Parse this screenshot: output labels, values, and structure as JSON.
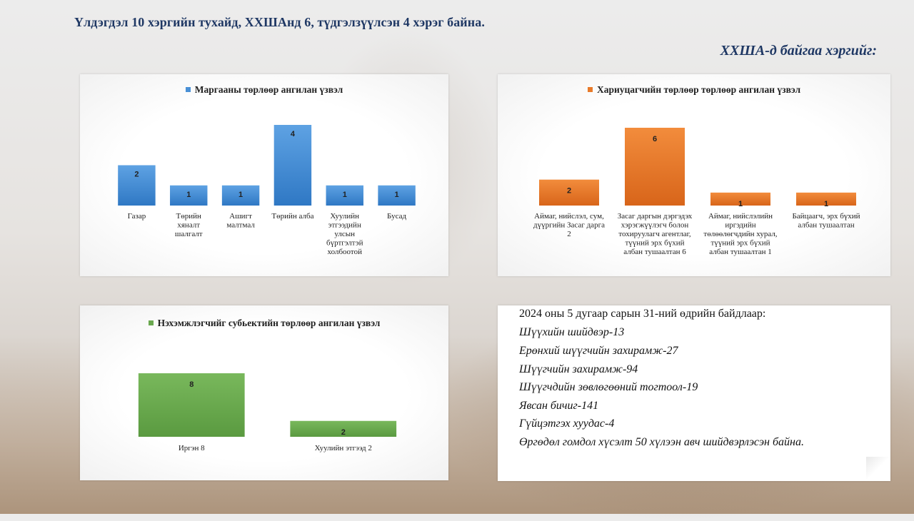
{
  "page": {
    "headline": "Үлдэгдэл 10 хэргийн тухайд,  ХХШАнд 6, түдгэлзүүлсэн 4 хэрэг байна.",
    "subhead": "ХХША-д байгаа хэргийг:"
  },
  "colors": {
    "blue": "#4a90d6",
    "orange": "#e87a2a",
    "green": "#6aa84f",
    "navy": "#1f3864"
  },
  "chart_data": [
    {
      "type": "bar",
      "title": "Маргааны төрлөөр ангилан үзвэл",
      "legend": "top",
      "categories": [
        [
          "Газар"
        ],
        [
          "Төрийн",
          "хяналт",
          "шалгалт"
        ],
        [
          "Ашигт",
          "малтмал"
        ],
        [
          "Төрийн алба"
        ],
        [
          "Хуулийн",
          "этгээдийн",
          "улсын",
          "бүртгэлтэй",
          "холбоотой"
        ],
        [
          "Бусад"
        ]
      ],
      "values": [
        2,
        1,
        1,
        4,
        1,
        1
      ],
      "data_labels": [
        "2",
        "1",
        "1",
        "4",
        "1",
        "1"
      ]
    },
    {
      "type": "bar",
      "title": "Хариуцагчийн  төрлөөр төрлөөр ангилан үзвэл",
      "legend": "top",
      "categories": [
        [
          "Аймаг, нийслэл,  сум,",
          "дүүргийн Засаг дарга",
          "2"
        ],
        [
          "Засаг даргын дэргэдэх",
          "хэрэгжүүлэгч болон",
          "тохируулагч агентлаг,",
          "түүний эрх бүхий",
          "албан тушаалтан 6"
        ],
        [
          "Аймаг, нийслэлийн",
          "иргэдийн",
          "төлөөлөгчдийн хурал,",
          "түүний эрх бүхий",
          "албан тушаалтан 1"
        ],
        [
          "Байцаагч,  эрх бүхий",
          "албан тушаалтан"
        ]
      ],
      "values": [
        2,
        6,
        1,
        1
      ],
      "data_labels": [
        "2",
        "6",
        "1",
        "1"
      ]
    },
    {
      "type": "bar",
      "title": "Нэхэмжлэгчийг субьектийн төрлөөр ангилан үзвэл",
      "legend": "top",
      "categories": [
        [
          "Иргэн 8"
        ],
        [
          "Хуулийн этгээд 2"
        ]
      ],
      "values": [
        8,
        2
      ],
      "data_labels": [
        "8",
        "2"
      ]
    }
  ],
  "note": {
    "lines": [
      "2024  оны 5 дугаар сарын 31-ний  өдрийн байдлаар:",
      "Шүүхийн шийдвэр-13",
      "Ерөнхий шүүгчийн захирамж-27",
      "Шүүгчийн захирамж-94",
      "Шүүгчдийн зөвлөгөөний тогтоол-19",
      "Явсан бичиг-141",
      "Гүйцэтгэх хуудас-4",
      "Өргөдөл гомдол хүсэлт 50 хүлээн авч шийдвэрлэсэн байна."
    ]
  }
}
